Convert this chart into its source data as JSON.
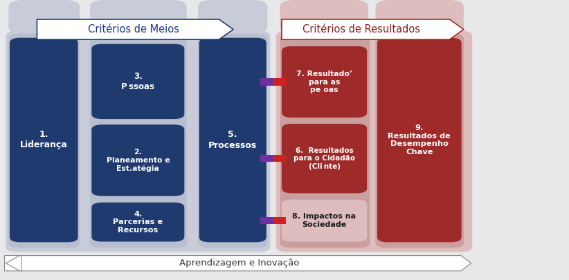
{
  "fig_bg": "#e8e8ea",
  "blue_dark": "#1e3a6e",
  "red_dark": "#9e2a2a",
  "blue_col_bg": "#c8ccd8",
  "red_col_bg": "#ddbdbd",
  "blue_sub_bg": "#b8bece",
  "red_sub_bg": "#cc9f9f",
  "arrow_border_blue": "#1e3a6e",
  "arrow_border_red": "#9e2a2a",
  "title_blue": "Critérios de Meios",
  "title_red": "Critérios de Resultados",
  "bottom_label": "Aprendizagem e Inovação",
  "box1_label": "1.\nLiderança",
  "box2_label": "2.\nPlaneamento e\nEst.atégia",
  "box3_label": "3.\nP ssoas",
  "box4_label": "4.\nParcerias e\nRecursos",
  "box5_label": "5.\nProcessos",
  "box6_label": "6.  Resultados\npara o Cidadão\n(Cli nte)",
  "box7_label": "7. Resultado’\npara as\npe  oas",
  "box8_label": "8. Impactos na\nSociedade",
  "box9_label": "9.\nResultados de\nDesempenho\nChave"
}
